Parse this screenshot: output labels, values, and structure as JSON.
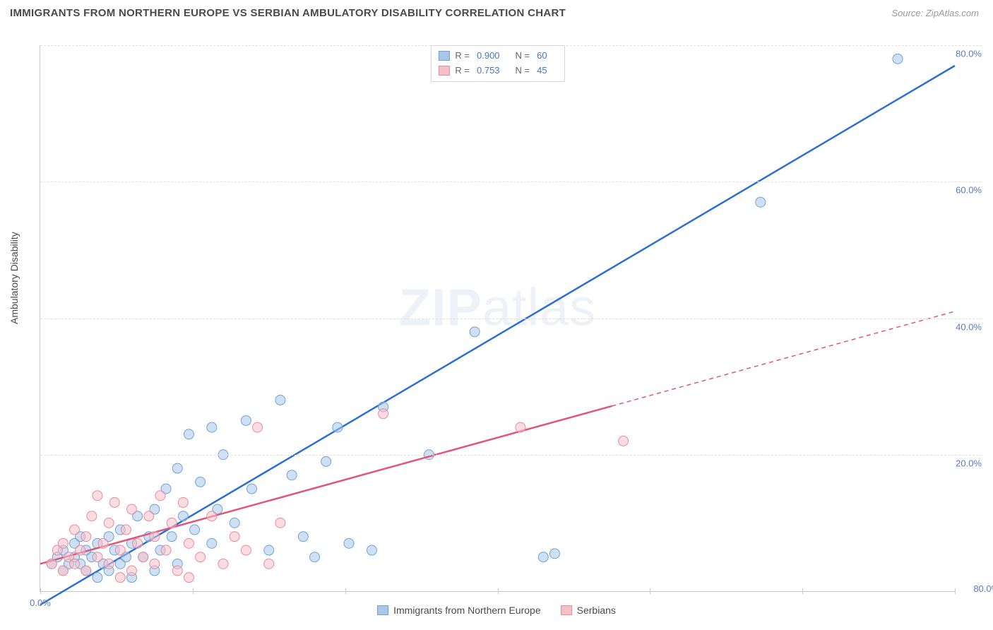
{
  "header": {
    "title": "IMMIGRANTS FROM NORTHERN EUROPE VS SERBIAN AMBULATORY DISABILITY CORRELATION CHART",
    "source_prefix": "Source: ",
    "source": "ZipAtlas.com"
  },
  "chart": {
    "ylabel": "Ambulatory Disability",
    "watermark": "ZIPatlas",
    "xlim": [
      0,
      80
    ],
    "ylim": [
      0,
      80
    ],
    "x_ticks": [
      0,
      13.33,
      26.67,
      40,
      53.33,
      66.67,
      80
    ],
    "x_tick_labels": {
      "0": "0.0%",
      "80": "80.0%"
    },
    "y_gridlines": [
      20,
      40,
      60,
      80
    ],
    "y_tick_labels": {
      "20": "20.0%",
      "40": "40.0%",
      "60": "60.0%",
      "80": "80.0%"
    },
    "grid_color": "#e0e0e0",
    "axis_color": "#c8c8c8",
    "series": [
      {
        "key": "northern_europe",
        "label": "Immigrants from Northern Europe",
        "r": "0.900",
        "n": "60",
        "color_fill": "#a8c6e8",
        "color_stroke": "#6fa3d9",
        "line_color": "#2d6fd1",
        "marker_radius": 7,
        "line": {
          "x1": 0,
          "y1": -2,
          "x2": 80,
          "y2": 77
        },
        "line_solid_until_x": 80,
        "points": [
          [
            1,
            4
          ],
          [
            1.5,
            5
          ],
          [
            2,
            3
          ],
          [
            2,
            6
          ],
          [
            2.5,
            4
          ],
          [
            3,
            5
          ],
          [
            3,
            7
          ],
          [
            3.5,
            4
          ],
          [
            3.5,
            8
          ],
          [
            4,
            3
          ],
          [
            4,
            6
          ],
          [
            4.5,
            5
          ],
          [
            5,
            2
          ],
          [
            5,
            7
          ],
          [
            5.5,
            4
          ],
          [
            6,
            3
          ],
          [
            6,
            8
          ],
          [
            6.5,
            6
          ],
          [
            7,
            4
          ],
          [
            7,
            9
          ],
          [
            7.5,
            5
          ],
          [
            8,
            2
          ],
          [
            8,
            7
          ],
          [
            8.5,
            11
          ],
          [
            9,
            5
          ],
          [
            9.5,
            8
          ],
          [
            10,
            3
          ],
          [
            10,
            12
          ],
          [
            10.5,
            6
          ],
          [
            11,
            15
          ],
          [
            11.5,
            8
          ],
          [
            12,
            4
          ],
          [
            12,
            18
          ],
          [
            12.5,
            11
          ],
          [
            13,
            23
          ],
          [
            13.5,
            9
          ],
          [
            14,
            16
          ],
          [
            15,
            24
          ],
          [
            15.5,
            12
          ],
          [
            15,
            7
          ],
          [
            16,
            20
          ],
          [
            17,
            10
          ],
          [
            18,
            25
          ],
          [
            18.5,
            15
          ],
          [
            20,
            6
          ],
          [
            21,
            28
          ],
          [
            22,
            17
          ],
          [
            23,
            8
          ],
          [
            24,
            5
          ],
          [
            25,
            19
          ],
          [
            26,
            24
          ],
          [
            27,
            7
          ],
          [
            29,
            6
          ],
          [
            30,
            27
          ],
          [
            34,
            20
          ],
          [
            38,
            38
          ],
          [
            44,
            5
          ],
          [
            45,
            5.5
          ],
          [
            63,
            57
          ],
          [
            75,
            78
          ]
        ]
      },
      {
        "key": "serbians",
        "label": "Serbians",
        "r": "0.753",
        "n": "45",
        "color_fill": "#f5bfc8",
        "color_stroke": "#e98ba0",
        "line_color": "#e05678",
        "marker_radius": 7,
        "line": {
          "x1": 0,
          "y1": 4,
          "x2": 80,
          "y2": 41
        },
        "line_solid_until_x": 50,
        "points": [
          [
            1,
            4
          ],
          [
            1.5,
            6
          ],
          [
            2,
            3
          ],
          [
            2,
            7
          ],
          [
            2.5,
            5
          ],
          [
            3,
            4
          ],
          [
            3,
            9
          ],
          [
            3.5,
            6
          ],
          [
            4,
            3
          ],
          [
            4,
            8
          ],
          [
            4.5,
            11
          ],
          [
            5,
            5
          ],
          [
            5,
            14
          ],
          [
            5.5,
            7
          ],
          [
            6,
            4
          ],
          [
            6,
            10
          ],
          [
            6.5,
            13
          ],
          [
            7,
            6
          ],
          [
            7.5,
            9
          ],
          [
            8,
            3
          ],
          [
            8,
            12
          ],
          [
            8.5,
            7
          ],
          [
            9,
            5
          ],
          [
            9.5,
            11
          ],
          [
            10,
            4
          ],
          [
            10,
            8
          ],
          [
            10.5,
            14
          ],
          [
            11,
            6
          ],
          [
            11.5,
            10
          ],
          [
            12,
            3
          ],
          [
            12.5,
            13
          ],
          [
            13,
            7
          ],
          [
            14,
            5
          ],
          [
            15,
            11
          ],
          [
            16,
            4
          ],
          [
            17,
            8
          ],
          [
            18,
            6
          ],
          [
            19,
            24
          ],
          [
            20,
            4
          ],
          [
            21,
            10
          ],
          [
            30,
            26
          ],
          [
            42,
            24
          ],
          [
            51,
            22
          ],
          [
            7,
            2
          ],
          [
            13,
            2
          ]
        ]
      }
    ]
  }
}
